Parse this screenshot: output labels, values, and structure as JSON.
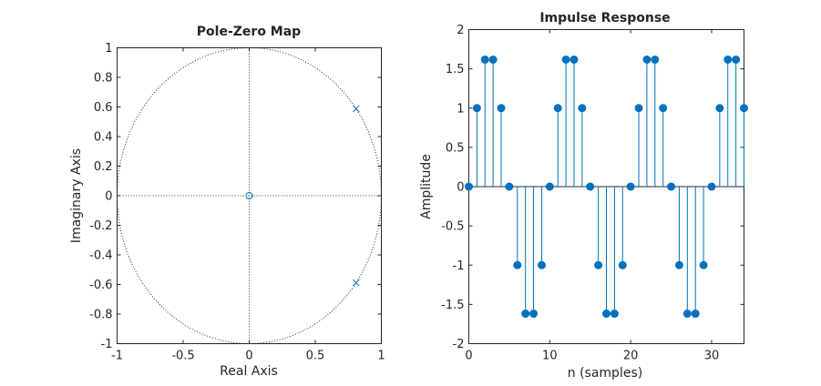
{
  "chart_data": [
    {
      "type": "scatter",
      "title": "Pole-Zero Map",
      "xlabel": "Real Axis",
      "ylabel": "Imaginary Axis",
      "xlim": [
        -1,
        1
      ],
      "ylim": [
        -1,
        1
      ],
      "xticks": [
        -1,
        -0.5,
        0,
        0.5,
        1
      ],
      "xtick_labels": [
        "-1",
        "-0.5",
        "0",
        "0.5",
        "1"
      ],
      "yticks": [
        -1,
        -0.8,
        -0.6,
        -0.4,
        -0.2,
        0,
        0.2,
        0.4,
        0.6,
        0.8,
        1
      ],
      "ytick_labels": [
        "-1",
        "-0.8",
        "-0.6",
        "-0.4",
        "-0.2",
        "0",
        "0.2",
        "0.4",
        "0.6",
        "0.8",
        "1"
      ],
      "unit_circle": true,
      "grid": false,
      "series": [
        {
          "marker": "x",
          "points": [
            [
              0.809,
              0.588
            ],
            [
              0.809,
              -0.588
            ]
          ]
        },
        {
          "marker": "o",
          "points": [
            [
              0,
              0
            ]
          ]
        }
      ],
      "color": "#0072BD"
    },
    {
      "type": "stem",
      "title": "Impulse Response",
      "xlabel": "n (samples)",
      "ylabel": "Amplitude",
      "xlim": [
        0,
        34
      ],
      "ylim": [
        -2,
        2
      ],
      "xticks": [
        0,
        10,
        20,
        30
      ],
      "xtick_labels": [
        "0",
        "10",
        "20",
        "30"
      ],
      "yticks": [
        -2,
        -1.5,
        -1,
        -0.5,
        0,
        0.5,
        1,
        1.5,
        2
      ],
      "ytick_labels": [
        "-2",
        "-1.5",
        "-1",
        "-0.5",
        "0",
        "0.5",
        "1",
        "1.5",
        "2"
      ],
      "grid": false,
      "x": [
        0,
        1,
        2,
        3,
        4,
        5,
        6,
        7,
        8,
        9,
        10,
        11,
        12,
        13,
        14,
        15,
        16,
        17,
        18,
        19,
        20,
        21,
        22,
        23,
        24,
        25,
        26,
        27,
        28,
        29,
        30,
        31,
        32,
        33,
        34
      ],
      "values": [
        0,
        1,
        1.618,
        1.618,
        1,
        0,
        -1,
        -1.618,
        -1.618,
        -1,
        0,
        1,
        1.618,
        1.618,
        1,
        0,
        -1,
        -1.618,
        -1.618,
        -1,
        0,
        1,
        1.618,
        1.618,
        1,
        0,
        -1,
        -1.618,
        -1.618,
        -1,
        0,
        1,
        1.618,
        1.618,
        1
      ],
      "color": "#0072BD"
    }
  ]
}
